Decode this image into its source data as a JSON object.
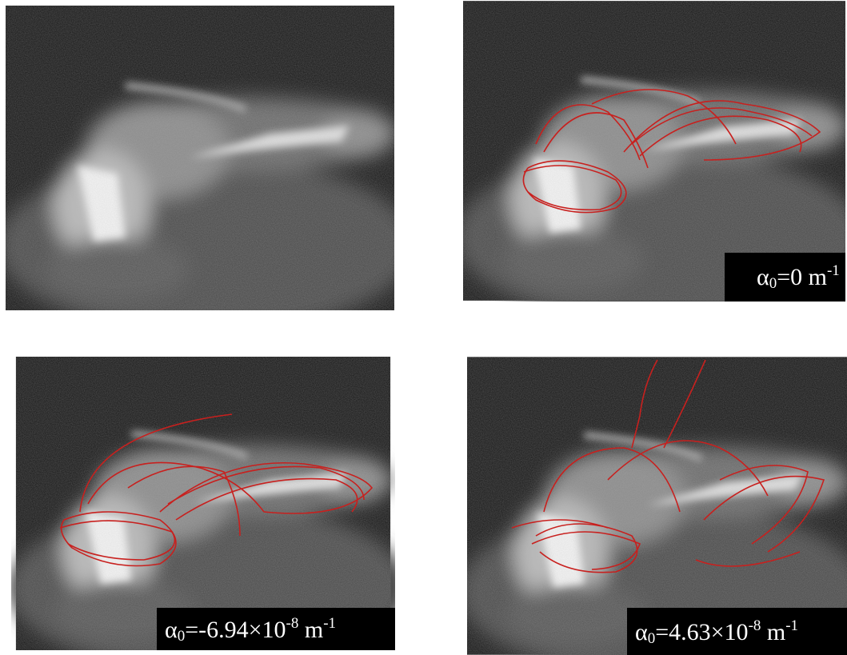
{
  "labels": [
    [
      {
        "text": "α"
      },
      {
        "sub": "0"
      },
      {
        "text": "=0 m"
      },
      {
        "sup": "-1"
      }
    ],
    [
      {
        "text": "α"
      },
      {
        "sub": "0"
      },
      {
        "text": "=-6.94×10"
      },
      {
        "sup": "-8"
      },
      {
        "text": " m"
      },
      {
        "sup": "-1"
      }
    ],
    [
      {
        "text": "α"
      },
      {
        "sub": "0"
      },
      {
        "text": "=4.63×10"
      },
      {
        "sup": "-8"
      },
      {
        "text": " m"
      },
      {
        "sup": "-1"
      }
    ]
  ]
}
